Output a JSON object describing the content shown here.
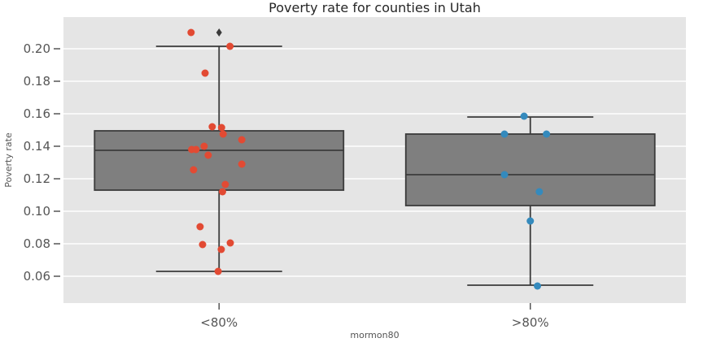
{
  "chart_data": {
    "type": "boxplot",
    "title": "Poverty rate for counties in Utah",
    "xlabel": "mormon80",
    "ylabel": "Poverty rate",
    "categories": [
      "<80%",
      ">80%"
    ],
    "ytick_labels": [
      "0.20",
      "0.18",
      "0.16",
      "0.14",
      "0.12",
      "0.10",
      "0.08",
      "0.06"
    ],
    "ylim": [
      0.0435,
      0.2195
    ],
    "grid": true,
    "legend": "none",
    "series": [
      {
        "category": "<80%",
        "box": {
          "whisker_low": 0.063,
          "q1": 0.113,
          "median": 0.1375,
          "q3": 0.1495,
          "whisker_high": 0.2015,
          "fliers": [
            0.21
          ]
        },
        "point_color": "#E24A33",
        "points": [
          [
            -0.09,
            0.21
          ],
          [
            0.035,
            0.2015
          ],
          [
            -0.045,
            0.185
          ],
          [
            -0.022,
            0.152
          ],
          [
            0.008,
            0.1515
          ],
          [
            0.013,
            0.1475
          ],
          [
            0.073,
            0.144
          ],
          [
            -0.048,
            0.14
          ],
          [
            -0.088,
            0.138
          ],
          [
            -0.074,
            0.138
          ],
          [
            -0.035,
            0.1345
          ],
          [
            0.073,
            0.129
          ],
          [
            -0.082,
            0.1255
          ],
          [
            0.02,
            0.1165
          ],
          [
            0.011,
            0.112
          ],
          [
            -0.061,
            0.0905
          ],
          [
            0.036,
            0.0805
          ],
          [
            -0.053,
            0.0795
          ],
          [
            0.007,
            0.0765
          ],
          [
            -0.003,
            0.063
          ]
        ]
      },
      {
        "category": ">80%",
        "box": {
          "whisker_low": 0.0545,
          "q1": 0.1035,
          "median": 0.1225,
          "q3": 0.1475,
          "whisker_high": 0.158,
          "fliers": []
        },
        "point_color": "#348ABD",
        "points": [
          [
            -0.02,
            0.1585
          ],
          [
            -0.083,
            0.1475
          ],
          [
            0.052,
            0.1475
          ],
          [
            -0.083,
            0.1225
          ],
          [
            0.029,
            0.112
          ],
          [
            0.0,
            0.094
          ],
          [
            0.023,
            0.054
          ]
        ]
      }
    ],
    "palette": {
      "figure_bg": "#FFFFFF",
      "plot_bg": "#E5E5E5",
      "grid": "#FFFFFF",
      "box_fill": "#7F7F7F",
      "box_edge": "#3B3B3B",
      "red_points": "#E24A33",
      "blue_points": "#348ABD",
      "tick_text": "#555555",
      "title_text": "#262626"
    }
  }
}
